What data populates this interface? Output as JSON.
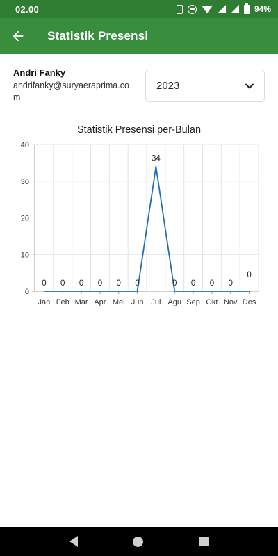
{
  "status_bar": {
    "time": "02.00",
    "battery": "94%"
  },
  "app_bar": {
    "title": "Statistik Presensi"
  },
  "user": {
    "name": "Andri Fanky",
    "email": "andrifanky@suryaeraprima.com"
  },
  "year_select": {
    "value": "2023"
  },
  "chart_data": {
    "type": "line",
    "title": "Statistik Presensi per-Bulan",
    "categories": [
      "Jan",
      "Feb",
      "Mar",
      "Apr",
      "Mei",
      "Jun",
      "Jul",
      "Agu",
      "Sep",
      "Okt",
      "Nov",
      "Des"
    ],
    "values": [
      0,
      0,
      0,
      0,
      0,
      0,
      34,
      0,
      0,
      0,
      0,
      0
    ],
    "data_labels": [
      "0",
      "0",
      "0",
      "0",
      "0",
      "0",
      "34",
      "0",
      "0",
      "0",
      "0",
      "0"
    ],
    "yticks": [
      "0",
      "10",
      "20",
      "30",
      "40"
    ],
    "ylim": [
      0,
      40
    ],
    "grid": true,
    "line_color": "#1f6fb2"
  }
}
